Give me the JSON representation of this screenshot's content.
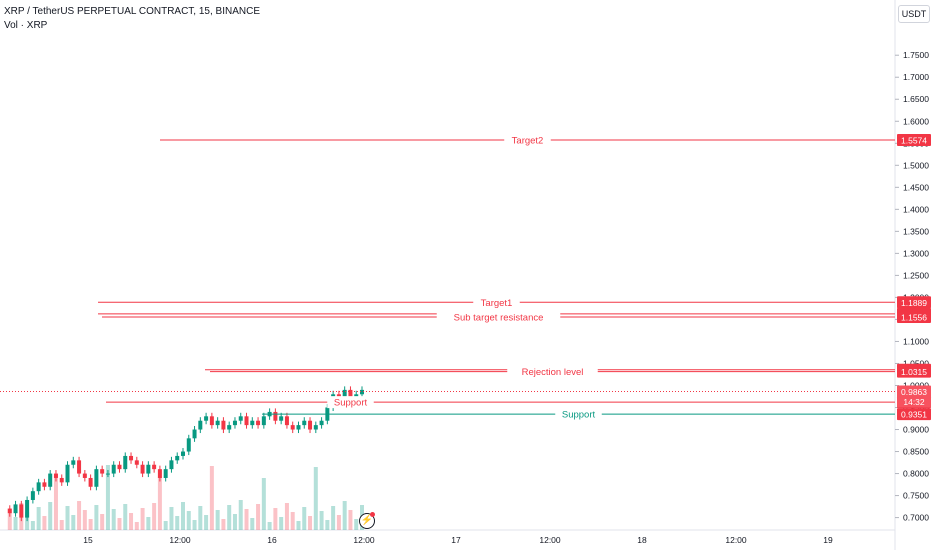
{
  "header": {
    "title": "XRP / TetherUS PERPETUAL CONTRACT, 15, BINANCE",
    "volume_label": "Vol · XRP",
    "currency": "USDT"
  },
  "colors": {
    "up": "#089981",
    "down": "#f23645",
    "line": "#f23645",
    "support_teal": "#089981",
    "axis_text": "#131722",
    "grid": "#f0f3fa"
  },
  "chart_data": {
    "type": "candlestick",
    "symbol": "XRP / TetherUS PERPETUAL CONTRACT",
    "interval": "15",
    "exchange": "BINANCE",
    "y_axis": {
      "min": 0.69,
      "max": 1.78,
      "ticks": [
        "1.7500",
        "1.7000",
        "1.6500",
        "1.6000",
        "1.5500",
        "1.5000",
        "1.4500",
        "1.4000",
        "1.3500",
        "1.3000",
        "1.2500",
        "1.2000",
        "1.1500",
        "1.1000",
        "1.0500",
        "1.0000",
        "0.9500",
        "0.9000",
        "0.8500",
        "0.8000",
        "0.7500",
        "0.7000"
      ]
    },
    "x_axis": {
      "ticks": [
        "15",
        "12:00",
        "16",
        "12:00",
        "17",
        "12:00",
        "18",
        "12:00",
        "19"
      ]
    },
    "price_path": [
      0.72,
      0.71,
      0.73,
      0.7,
      0.74,
      0.76,
      0.78,
      0.77,
      0.8,
      0.79,
      0.78,
      0.82,
      0.83,
      0.8,
      0.79,
      0.77,
      0.81,
      0.8,
      0.8,
      0.82,
      0.81,
      0.84,
      0.83,
      0.82,
      0.8,
      0.82,
      0.81,
      0.79,
      0.81,
      0.83,
      0.84,
      0.85,
      0.88,
      0.9,
      0.92,
      0.93,
      0.91,
      0.92,
      0.9,
      0.91,
      0.92,
      0.93,
      0.91,
      0.92,
      0.91,
      0.93,
      0.94,
      0.92,
      0.93,
      0.91,
      0.9,
      0.91,
      0.92,
      0.9,
      0.91,
      0.92,
      0.95,
      0.98,
      0.97,
      0.99,
      0.97,
      0.98,
      0.99
    ],
    "levels": [
      {
        "label": "Target2",
        "price": "1.5574",
        "value": 1.5574,
        "color": "red"
      },
      {
        "label": "Target1",
        "price": "1.1889",
        "value": 1.1889,
        "color": "red"
      },
      {
        "label": "",
        "price": "1.1626",
        "value": 1.1626,
        "color": "red"
      },
      {
        "label": "Sub target resistance",
        "price": "1.1556",
        "value": 1.1556,
        "color": "red"
      },
      {
        "label": "",
        "price": "1.0357",
        "value": 1.0357,
        "color": "red"
      },
      {
        "label": "Rejection level",
        "price": "1.0315",
        "value": 1.0315,
        "color": "red"
      },
      {
        "label": "Support",
        "price": "0.9622",
        "value": 0.9622,
        "color": "red"
      },
      {
        "label": "Support",
        "price": "0.9351",
        "value": 0.9351,
        "color": "teal"
      }
    ],
    "current_price": {
      "price": "0.9863",
      "countdown": "14:32",
      "value": 0.9863
    }
  }
}
